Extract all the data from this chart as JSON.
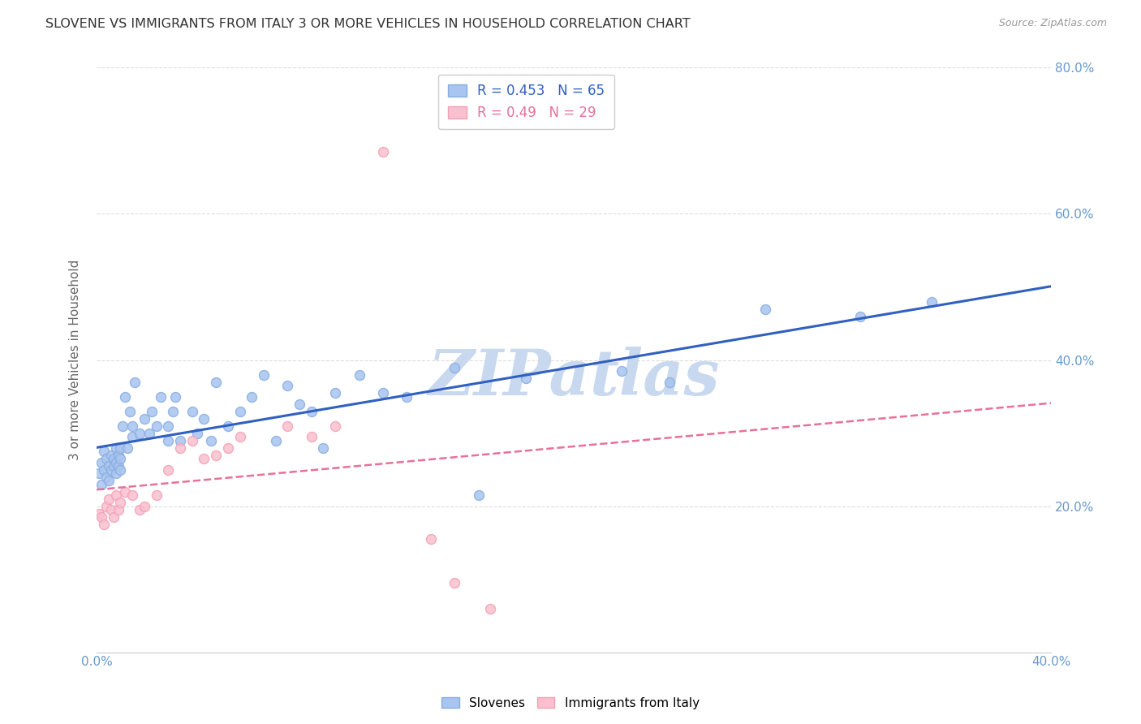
{
  "title": "SLOVENE VS IMMIGRANTS FROM ITALY 3 OR MORE VEHICLES IN HOUSEHOLD CORRELATION CHART",
  "source": "Source: ZipAtlas.com",
  "ylabel": "3 or more Vehicles in Household",
  "xlim": [
    0.0,
    0.4
  ],
  "ylim": [
    0.0,
    0.8
  ],
  "blue_color": "#87AEDE",
  "blue_fill": "#A8C4F0",
  "pink_color": "#F4A0B5",
  "pink_fill": "#F9C0CF",
  "blue_line_color": "#3060C0",
  "pink_line_color": "#E8709A",
  "R_slovene": 0.453,
  "N_slovene": 65,
  "R_italy": 0.49,
  "N_italy": 29,
  "background_color": "#ffffff",
  "grid_color": "#dddddd",
  "axis_color": "#6699CC",
  "watermark": "ZIPatlas",
  "watermark_color": "#C8D8EE",
  "slovene_x": [
    0.001,
    0.002,
    0.002,
    0.003,
    0.003,
    0.004,
    0.004,
    0.005,
    0.005,
    0.006,
    0.006,
    0.007,
    0.007,
    0.008,
    0.008,
    0.008,
    0.009,
    0.009,
    0.01,
    0.01,
    0.01,
    0.011,
    0.012,
    0.013,
    0.014,
    0.015,
    0.015,
    0.016,
    0.018,
    0.02,
    0.022,
    0.023,
    0.025,
    0.027,
    0.03,
    0.03,
    0.032,
    0.033,
    0.035,
    0.04,
    0.042,
    0.045,
    0.048,
    0.05,
    0.055,
    0.06,
    0.065,
    0.07,
    0.075,
    0.08,
    0.085,
    0.09,
    0.095,
    0.1,
    0.11,
    0.12,
    0.13,
    0.15,
    0.16,
    0.18,
    0.22,
    0.24,
    0.28,
    0.32,
    0.35
  ],
  "slovene_y": [
    0.245,
    0.23,
    0.26,
    0.25,
    0.275,
    0.24,
    0.265,
    0.235,
    0.255,
    0.25,
    0.27,
    0.255,
    0.265,
    0.245,
    0.26,
    0.28,
    0.255,
    0.27,
    0.25,
    0.265,
    0.28,
    0.31,
    0.35,
    0.28,
    0.33,
    0.295,
    0.31,
    0.37,
    0.3,
    0.32,
    0.3,
    0.33,
    0.31,
    0.35,
    0.29,
    0.31,
    0.33,
    0.35,
    0.29,
    0.33,
    0.3,
    0.32,
    0.29,
    0.37,
    0.31,
    0.33,
    0.35,
    0.38,
    0.29,
    0.365,
    0.34,
    0.33,
    0.28,
    0.355,
    0.38,
    0.355,
    0.35,
    0.39,
    0.215,
    0.375,
    0.385,
    0.37,
    0.47,
    0.46,
    0.48
  ],
  "italy_x": [
    0.001,
    0.002,
    0.003,
    0.004,
    0.005,
    0.006,
    0.007,
    0.008,
    0.009,
    0.01,
    0.012,
    0.015,
    0.018,
    0.02,
    0.025,
    0.03,
    0.035,
    0.04,
    0.045,
    0.05,
    0.055,
    0.06,
    0.08,
    0.09,
    0.1,
    0.12,
    0.14,
    0.15,
    0.165
  ],
  "italy_y": [
    0.19,
    0.185,
    0.175,
    0.2,
    0.21,
    0.195,
    0.185,
    0.215,
    0.195,
    0.205,
    0.22,
    0.215,
    0.195,
    0.2,
    0.215,
    0.25,
    0.28,
    0.29,
    0.265,
    0.27,
    0.28,
    0.295,
    0.31,
    0.295,
    0.31,
    0.685,
    0.155,
    0.095,
    0.06
  ]
}
